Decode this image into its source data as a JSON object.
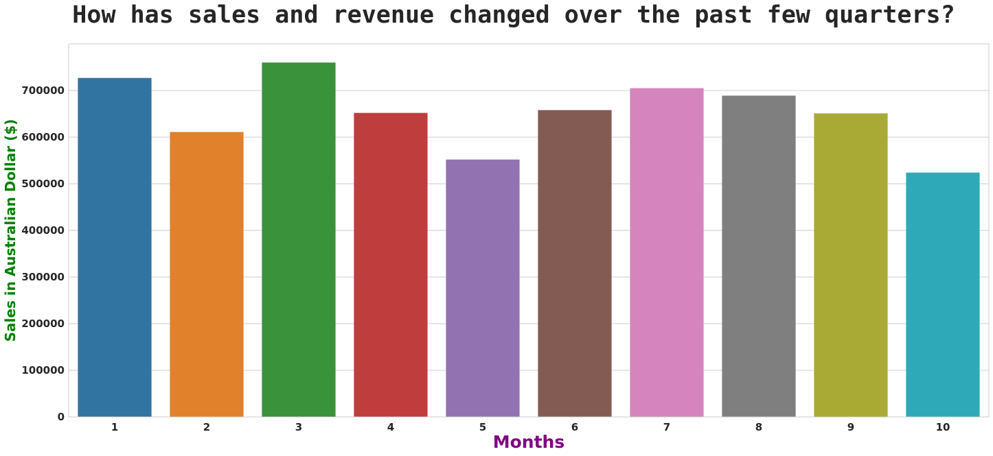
{
  "chart_data": {
    "type": "bar",
    "title": "How has sales and revenue changed over the past few quarters?",
    "xlabel": "Months",
    "ylabel": "Sales in Australian Dollar ($)",
    "categories": [
      "1",
      "2",
      "3",
      "4",
      "5",
      "6",
      "7",
      "8",
      "9",
      "10"
    ],
    "values": [
      727000,
      611000,
      760000,
      652000,
      552000,
      658000,
      705000,
      689000,
      651000,
      524000
    ],
    "bar_colors": [
      "#3274a1",
      "#e1812c",
      "#3a923a",
      "#c03d3e",
      "#9372b2",
      "#845b53",
      "#d684bd",
      "#7f7f7f",
      "#a9aa35",
      "#2ea9b8"
    ],
    "ylim": [
      0,
      800000
    ],
    "yticks": [
      0,
      100000,
      200000,
      300000,
      400000,
      500000,
      600000,
      700000
    ],
    "ytick_labels": [
      "0",
      "100000",
      "200000",
      "300000",
      "400000",
      "500000",
      "600000",
      "700000"
    ],
    "grid": true,
    "xlabel_color": "#800080",
    "ylabel_color": "#008000"
  }
}
